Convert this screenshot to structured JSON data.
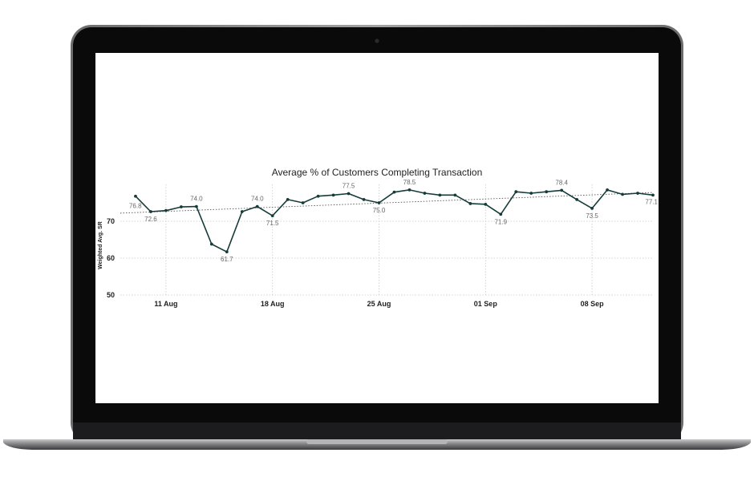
{
  "chart_data": {
    "type": "line",
    "title": "Average % of Customers Completing Transaction",
    "xlabel": "",
    "ylabel": "Weighted Avg. SR",
    "x_ticks": [
      "11 Aug",
      "18 Aug",
      "25 Aug",
      "01 Sep",
      "08 Sep"
    ],
    "y_ticks": [
      "50",
      "60",
      "70"
    ],
    "ylim": [
      50,
      80
    ],
    "xlim": [
      "2024-08-08",
      "2024-09-12"
    ],
    "grid": true,
    "trendline": {
      "style": "dotted",
      "start_value": 72.2,
      "end_value": 77.8
    },
    "color": "#163c3a",
    "series": [
      {
        "x": [
          "2024-08-09",
          "2024-08-10",
          "2024-08-11",
          "2024-08-12",
          "2024-08-13",
          "2024-08-14",
          "2024-08-15",
          "2024-08-16",
          "2024-08-17",
          "2024-08-18",
          "2024-08-19",
          "2024-08-20",
          "2024-08-21",
          "2024-08-22",
          "2024-08-23",
          "2024-08-24",
          "2024-08-25",
          "2024-08-26",
          "2024-08-27",
          "2024-08-28",
          "2024-08-29",
          "2024-08-30",
          "2024-08-31",
          "2024-09-01",
          "2024-09-02",
          "2024-09-03",
          "2024-09-04",
          "2024-09-05",
          "2024-09-06",
          "2024-09-07",
          "2024-09-08",
          "2024-09-09",
          "2024-09-10",
          "2024-09-11",
          "2024-09-12"
        ],
        "values": [
          76.8,
          72.6,
          72.9,
          73.9,
          74.0,
          63.8,
          61.7,
          72.6,
          74.0,
          71.5,
          75.9,
          75.0,
          76.8,
          77.1,
          77.5,
          75.9,
          75.0,
          77.9,
          78.5,
          77.6,
          77.1,
          77.1,
          74.8,
          74.6,
          71.9,
          78.0,
          77.6,
          78.0,
          78.4,
          75.9,
          73.5,
          78.5,
          77.3,
          77.6,
          77.1
        ],
        "labels": [
          {
            "index": 0,
            "text": "76.8"
          },
          {
            "index": 1,
            "text": "72.6"
          },
          {
            "index": 4,
            "text": "74.0"
          },
          {
            "index": 6,
            "text": "61.7"
          },
          {
            "index": 8,
            "text": "74.0"
          },
          {
            "index": 9,
            "text": "71.5"
          },
          {
            "index": 14,
            "text": "77.5"
          },
          {
            "index": 16,
            "text": "75.0"
          },
          {
            "index": 18,
            "text": "78.5"
          },
          {
            "index": 24,
            "text": "71.9"
          },
          {
            "index": 28,
            "text": "78.4"
          },
          {
            "index": 30,
            "text": "73.5"
          },
          {
            "index": 34,
            "text": "77.1"
          }
        ]
      }
    ]
  },
  "colors": {
    "laptop_bezel": "#0a0a0a",
    "laptop_frame": "#8e8e90",
    "screen": "#ffffff",
    "base": "#7a7a7c",
    "line": "#163c3a"
  },
  "icons": [
    "camera-icon"
  ]
}
